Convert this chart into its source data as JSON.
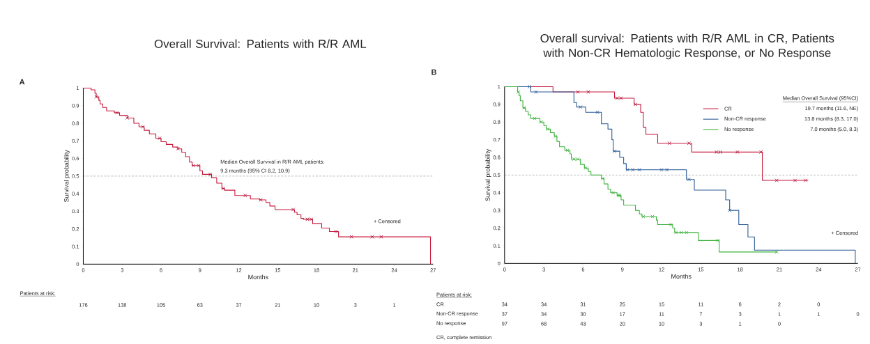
{
  "chart_data": [
    {
      "type": "step",
      "title": "Overall Survival: Patients with R/R AML",
      "xlabel": "Months",
      "ylabel": "Survival probability",
      "xlim": [
        0,
        27
      ],
      "xticks": [
        0,
        3,
        6,
        9,
        12,
        15,
        18,
        21,
        24,
        27
      ],
      "ylim": [
        0,
        1
      ],
      "yticks": [
        0,
        0.1,
        0.2,
        0.3,
        0.4,
        0.5,
        0.6,
        0.7,
        0.8,
        0.9,
        1
      ],
      "ref_lines": [
        {
          "axis": "y",
          "value": 0.5,
          "color": "#8c8c8c",
          "line_style": "dashed"
        }
      ],
      "series": [
        {
          "color": "#c8193c",
          "x": [
            0,
            0.6,
            0.9,
            1.0,
            1.2,
            1.3,
            1.5,
            1.8,
            2.4,
            2.8,
            3.4,
            3.9,
            4.3,
            4.7,
            5.1,
            5.6,
            6.0,
            6.4,
            6.9,
            7.3,
            7.6,
            7.9,
            8.2,
            8.4,
            9.0,
            9.2,
            9.9,
            10.3,
            10.7,
            10.9,
            11.7,
            12.9,
            13.6,
            14.1,
            14.4,
            14.8,
            16.3,
            16.5,
            16.8,
            17.0,
            17.7,
            18.4,
            19.0,
            19.7,
            26.8
          ],
          "values": [
            1,
            0.99,
            0.97,
            0.95,
            0.93,
            0.91,
            0.89,
            0.87,
            0.86,
            0.845,
            0.83,
            0.8,
            0.78,
            0.76,
            0.74,
            0.715,
            0.695,
            0.68,
            0.665,
            0.655,
            0.635,
            0.61,
            0.58,
            0.56,
            0.53,
            0.51,
            0.49,
            0.46,
            0.43,
            0.42,
            0.39,
            0.37,
            0.365,
            0.35,
            0.33,
            0.31,
            0.295,
            0.28,
            0.26,
            0.255,
            0.23,
            0.205,
            0.185,
            0.155,
            0
          ]
        },
        {
          "type": "scatter",
          "marker": "cross",
          "color": "#b0143a",
          "x": [
            1.0,
            2.6,
            3.4,
            4.6,
            5.9,
            7.3,
            8.5,
            8.9,
            9.8,
            10.8,
            12.5,
            13.7,
            16.2,
            17.3,
            17.6,
            19.5,
            20.7,
            22.3,
            23.0
          ],
          "values": [
            0.95,
            0.86,
            0.83,
            0.78,
            0.715,
            0.655,
            0.56,
            0.56,
            0.51,
            0.43,
            0.39,
            0.365,
            0.31,
            0.255,
            0.255,
            0.185,
            0.155,
            0.155,
            0.155
          ]
        }
      ],
      "annotations": [
        "A",
        "Median Overall Survival in R/R AML patients:",
        "9.3 months (95% CI 8.2, 10.9)",
        "+ Censored",
        "Patients at risk:",
        "176",
        "138",
        "105",
        "63",
        "37",
        "21",
        "10",
        "3",
        "1"
      ]
    },
    {
      "type": "step",
      "title": "Overall survival: Patients with R/R AML in CR, Patients with Non-CR Hematologic Response, or No Response",
      "xlabel": "Months",
      "ylabel": "Survival probability",
      "xlim": [
        0,
        27
      ],
      "xticks": [
        0,
        3,
        6,
        9,
        12,
        15,
        18,
        21,
        24,
        27
      ],
      "ylim": [
        0,
        1
      ],
      "yticks": [
        0,
        0.1,
        0.2,
        0.3,
        0.4,
        0.5,
        0.6,
        0.7,
        0.8,
        0.9,
        1
      ],
      "legend": "top right",
      "legend_title": "Median Overall Survival (95%CI)",
      "ref_lines": [
        {
          "axis": "y",
          "value": 0.5,
          "color": "#8c8c8c",
          "line_style": "dashed"
        }
      ],
      "series": [
        {
          "name": "CR",
          "color": "#c8193c",
          "x": [
            0,
            3.7,
            8.4,
            9.9,
            10.4,
            10.6,
            10.8,
            11.7,
            14.3,
            19.7,
            23.2
          ],
          "values": [
            1,
            0.97,
            0.935,
            0.9,
            0.855,
            0.77,
            0.73,
            0.68,
            0.63,
            0.47,
            0.47
          ]
        },
        {
          "name": "Non-CR response",
          "color": "#2b5c96",
          "x": [
            0,
            2.0,
            5.3,
            5.5,
            6.2,
            7.4,
            7.9,
            8.2,
            8.3,
            8.8,
            9.1,
            9.3,
            13.9,
            14.5,
            16.9,
            17.2,
            17.9,
            18.6,
            19.1,
            26.8
          ],
          "values": [
            1,
            0.97,
            0.91,
            0.885,
            0.855,
            0.79,
            0.76,
            0.7,
            0.635,
            0.6,
            0.565,
            0.53,
            0.475,
            0.415,
            0.36,
            0.3,
            0.22,
            0.15,
            0.075,
            0
          ]
        },
        {
          "name": "No response",
          "color": "#3db23d",
          "x": [
            0,
            1.0,
            1.1,
            1.2,
            1.4,
            1.6,
            1.8,
            2.0,
            2.7,
            3.0,
            3.2,
            3.5,
            3.8,
            4.0,
            4.2,
            4.6,
            5.0,
            5.1,
            5.8,
            6.1,
            6.4,
            6.6,
            7.4,
            7.6,
            7.9,
            8.1,
            8.6,
            8.9,
            9.1,
            10.0,
            10.3,
            10.5,
            11.6,
            11.7,
            12.85,
            13.0,
            14.8,
            16.4,
            20.8
          ],
          "values": [
            1,
            0.97,
            0.95,
            0.92,
            0.88,
            0.86,
            0.84,
            0.82,
            0.8,
            0.78,
            0.76,
            0.74,
            0.72,
            0.69,
            0.66,
            0.64,
            0.62,
            0.59,
            0.56,
            0.54,
            0.52,
            0.5,
            0.48,
            0.45,
            0.42,
            0.4,
            0.385,
            0.36,
            0.33,
            0.3,
            0.28,
            0.265,
            0.245,
            0.22,
            0.2,
            0.175,
            0.13,
            0.065,
            0.065
          ]
        },
        {
          "type": "scatter",
          "marker": "cross",
          "color": "#b0143a",
          "x": [
            5.6,
            6.4,
            8.6,
            8.9,
            10.0,
            12.6,
            14.1,
            16.2,
            16.5,
            17.8,
            19.6,
            20.8,
            22.2,
            23.0
          ],
          "values": [
            0.97,
            0.97,
            0.935,
            0.935,
            0.9,
            0.68,
            0.68,
            0.63,
            0.63,
            0.63,
            0.63,
            0.47,
            0.47,
            0.47
          ]
        },
        {
          "type": "scatter",
          "marker": "cross",
          "color": "#2b5c96",
          "x": [
            1.9,
            2.4,
            5.8,
            7.1,
            8.4,
            9.4,
            9.8,
            10.3,
            12.0,
            12.4,
            14.1,
            17.2
          ],
          "values": [
            1,
            0.97,
            0.885,
            0.855,
            0.635,
            0.53,
            0.53,
            0.53,
            0.53,
            0.53,
            0.475,
            0.3
          ]
        },
        {
          "type": "scatter",
          "marker": "cross",
          "color": "#3db23d",
          "x": [
            1.05,
            1.5,
            2.3,
            2.8,
            3.3,
            3.9,
            4.8,
            5.3,
            5.6,
            6.2,
            7.5,
            8.3,
            8.7,
            8.8,
            10.6,
            11.3,
            12.7,
            13.1,
            13.5,
            13.9,
            16.3,
            20.8
          ],
          "values": [
            0.97,
            0.88,
            0.82,
            0.8,
            0.76,
            0.72,
            0.64,
            0.59,
            0.59,
            0.54,
            0.48,
            0.4,
            0.385,
            0.385,
            0.265,
            0.265,
            0.22,
            0.175,
            0.175,
            0.175,
            0.13,
            0.065
          ]
        }
      ],
      "annotations": [
        "B",
        "+ Censored",
        "19.7 months (11.6, NE)",
        "13.8 months (8.3, 17.0)",
        "7.0 months (5.0, 8.3)",
        "Patients at risk:",
        "CR, complete remission",
        "CR",
        "34",
        "34",
        "31",
        "25",
        "15",
        "11",
        "6",
        "2",
        "0",
        "Non-CR response",
        "37",
        "34",
        "30",
        "17",
        "11",
        "7",
        "3",
        "1",
        "1",
        "0",
        "No response",
        "97",
        "68",
        "43",
        "20",
        "10",
        "3",
        "1",
        "0"
      ]
    }
  ]
}
